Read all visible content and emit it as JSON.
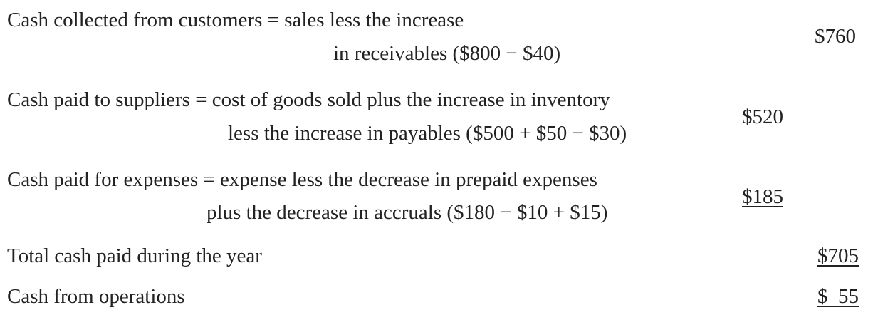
{
  "items": [
    {
      "line1": "Cash collected from customers = sales less the increase",
      "line2": "in receivables ($800 − $40)",
      "amount": "$760"
    },
    {
      "line1": "Cash paid to suppliers = cost of goods sold plus the increase in inventory",
      "line2": "less the increase in payables ($500 + $50 − $30)",
      "amount": "$520"
    },
    {
      "line1": "Cash paid for expenses = expense less the decrease in prepaid expenses",
      "line2": "plus the decrease in accruals ($180 − $10 + $15)",
      "amount": "$185"
    }
  ],
  "total_paid": {
    "label": "Total cash paid during the year",
    "amount": "$705"
  },
  "operations": {
    "label": "Cash from operations",
    "amount": "$  55"
  }
}
